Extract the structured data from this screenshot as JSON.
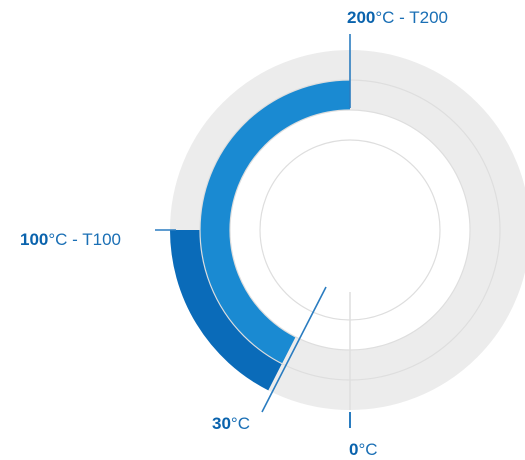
{
  "colors": {
    "track": "#ececec",
    "ring_line": "#dedede",
    "t200_band": "#1a8ad2",
    "t100_band": "#0a6bb9",
    "marker": "#2a7cc0",
    "label_value": "#0a63ad",
    "label_text": "#1a6fb5"
  },
  "scale": {
    "full_circle_degC": 400,
    "zero_at": "bottom",
    "direction": "clockwise"
  },
  "bands": [
    {
      "name": "T200",
      "from_degC": 30,
      "to_degC": 200
    },
    {
      "name": "T100",
      "from_degC": 30,
      "to_degC": 100
    }
  ],
  "labels": {
    "t200": {
      "value": "200",
      "unit": "°C",
      "suffix": " - T200"
    },
    "t100": {
      "value": "100",
      "unit": "°C",
      "suffix": " - T100"
    },
    "min30": {
      "value": "30",
      "unit": "°C"
    },
    "zero": {
      "value": "0",
      "unit": "°C"
    }
  }
}
